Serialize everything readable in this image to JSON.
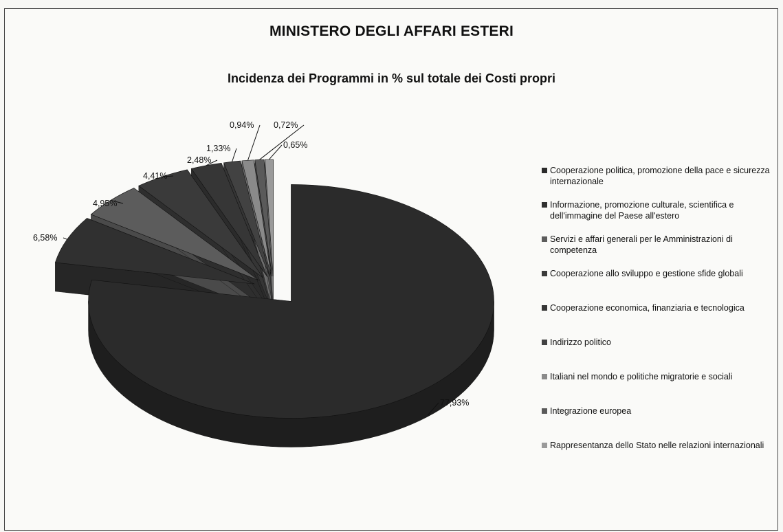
{
  "chart_data": {
    "type": "pie",
    "title": "MINISTERO DEGLI AFFARI ESTERI",
    "subtitle": "Incidenza dei Programmi in % sul totale dei Costi propri",
    "legend_position": "right",
    "slices": [
      {
        "label": "Cooperazione politica, promozione della pace e sicurezza internazionale",
        "value": 77.93,
        "value_label": "77,93%",
        "color": "#2b2b2b"
      },
      {
        "label": "Informazione, promozione culturale, scientifica e dell'immagine del Paese all'estero",
        "value": 6.58,
        "value_label": "6,58%",
        "color": "#303030"
      },
      {
        "label": "Servizi e affari generali per le Amministrazioni di competenza",
        "value": 4.95,
        "value_label": "4,95%",
        "color": "#5c5c5c"
      },
      {
        "label": "Cooperazione allo sviluppo e gestione sfide globali",
        "value": 4.41,
        "value_label": "4,41%",
        "color": "#3a3a3a"
      },
      {
        "label": "Cooperazione economica, finanziaria e tecnologica",
        "value": 2.48,
        "value_label": "2,48%",
        "color": "#363636"
      },
      {
        "label": "Indirizzo politico",
        "value": 1.33,
        "value_label": "1,33%",
        "color": "#424242"
      },
      {
        "label": "Italiani nel mondo e politiche migratorie e sociali",
        "value": 0.94,
        "value_label": "0,94%",
        "color": "#8a8a8a"
      },
      {
        "label": "Integrazione europea",
        "value": 0.72,
        "value_label": "0,72%",
        "color": "#5a5a5a"
      },
      {
        "label": "Rappresentanza dello Stato nelle relazioni internazionali",
        "value": 0.65,
        "value_label": "0,65%",
        "color": "#9a9a9a"
      }
    ]
  }
}
